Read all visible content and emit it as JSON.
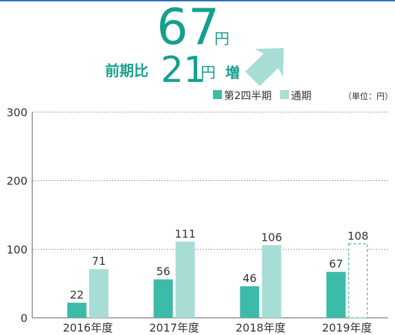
{
  "header": {
    "value": 67,
    "unit": "円",
    "comparison_label": "前期比",
    "change": 21,
    "change_unit": "円",
    "direction": "増"
  },
  "chart_data": {
    "type": "bar",
    "categories": [
      "2016年度",
      "2017年度",
      "2018年度",
      "2019年度"
    ],
    "series": [
      {
        "name": "第2四半期",
        "color": "#3dbba9",
        "values": [
          22,
          56,
          46,
          67
        ]
      },
      {
        "name": "通期",
        "color": "#a8ddd5",
        "values": [
          71,
          111,
          106,
          108
        ],
        "outlined": [
          false,
          false,
          false,
          true
        ]
      }
    ],
    "unit_label": "（単位：円）",
    "ylim": [
      0,
      300
    ],
    "yticks": [
      0,
      100,
      200,
      300
    ],
    "grid": true
  }
}
